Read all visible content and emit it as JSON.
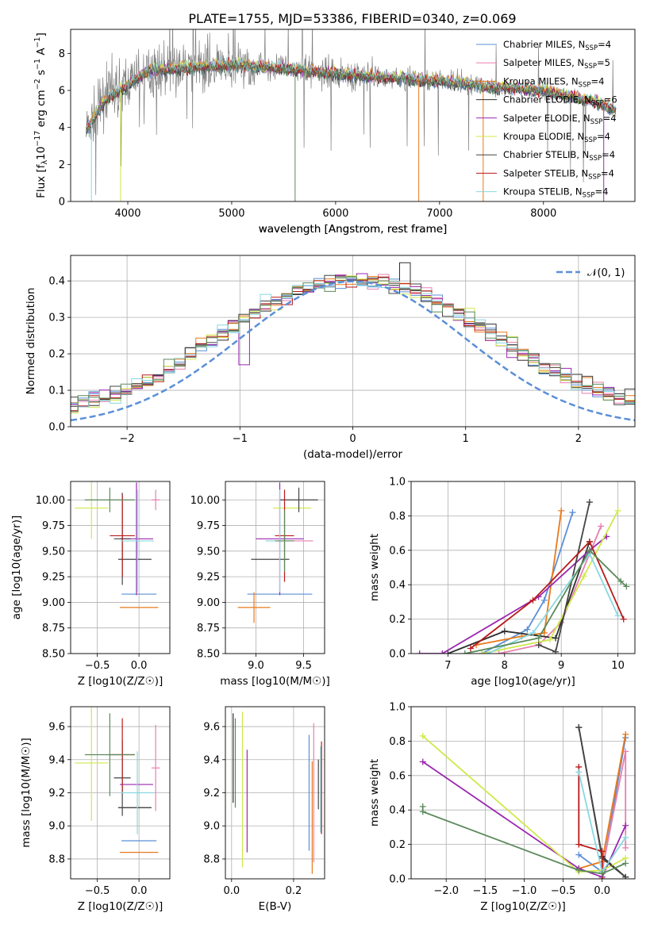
{
  "colors": {
    "palette": [
      "#5b8fd8",
      "#e87faf",
      "#e8791c",
      "#2f2f2f",
      "#9a27b0",
      "#d1e84a",
      "#444444",
      "#b81a1a",
      "#88d8e0",
      "#5b8a5b"
    ],
    "spectrum_data": "#808080",
    "normal_curve": "#5b8fd8",
    "grid": "#b0b0b0"
  },
  "chart_data": [
    {
      "id": "spectrum",
      "type": "line",
      "title": "PLATE=1755, MJD=53386, FIBERID=0340, z=0.069",
      "xlabel": "wavelength [Angstrom, rest frame]",
      "ylabel": "Flux [f_λ 10^-17 erg cm^-2 s^-1 A^-1]",
      "xlim": [
        3450,
        8880
      ],
      "ylim": [
        0,
        9.3
      ],
      "xticks": [
        4000,
        5000,
        6000,
        7000,
        8000
      ],
      "yticks": [
        0,
        2,
        4,
        6,
        8
      ],
      "grid": false,
      "legend_position": "top-right",
      "data_trend": {
        "x": [
          3600,
          3800,
          4000,
          4200,
          4500,
          5000,
          5500,
          6000,
          6500,
          7000,
          7500,
          8000,
          8500,
          8700
        ],
        "y": [
          3.9,
          5.6,
          6.3,
          7.1,
          7.2,
          7.4,
          7.2,
          6.9,
          6.7,
          6.5,
          6.2,
          6.0,
          5.4,
          4.9
        ]
      },
      "legend": [
        {
          "model": "Chabrier MILES",
          "nssp": "4"
        },
        {
          "model": "Salpeter MILES",
          "nssp": "5"
        },
        {
          "model": "Kroupa MILES",
          "nssp": "4"
        },
        {
          "model": "Chabrier ELODIE",
          "nssp": "6"
        },
        {
          "model": "Salpeter ELODIE",
          "nssp": "4"
        },
        {
          "model": "Kroupa ELODIE",
          "nssp": "4"
        },
        {
          "model": "Chabrier STELIB",
          "nssp": "4"
        },
        {
          "model": "Salpeter STELIB",
          "nssp": "4"
        },
        {
          "model": "Kroupa STELIB",
          "nssp": "4"
        }
      ]
    },
    {
      "id": "residuals",
      "type": "histogram",
      "xlabel": "(data-model)/error",
      "ylabel": "Normed distribution",
      "xlim": [
        -2.5,
        2.5
      ],
      "ylim": [
        0,
        0.47
      ],
      "xticks": [
        -2,
        -1,
        0,
        1,
        2
      ],
      "yticks": [
        0.0,
        0.1,
        0.2,
        0.3,
        0.4
      ],
      "grid": true,
      "legend": [
        {
          "label": "𝒩(0, 1)"
        }
      ],
      "legend_position": "top-right",
      "bin_width": 0.1,
      "density_mean": [
        0.026,
        0.028,
        0.032,
        0.038,
        0.044,
        0.052,
        0.06,
        0.068,
        0.075,
        0.082,
        0.09,
        0.1,
        0.112,
        0.126,
        0.142,
        0.16,
        0.18,
        0.2,
        0.222,
        0.24,
        0.258,
        0.276,
        0.294,
        0.312,
        0.33,
        0.346,
        0.36,
        0.372,
        0.382,
        0.39,
        0.396,
        0.4,
        0.402,
        0.402,
        0.4,
        0.396,
        0.39,
        0.382,
        0.372,
        0.36,
        0.346,
        0.33,
        0.312,
        0.294,
        0.276,
        0.258,
        0.24,
        0.222,
        0.204,
        0.186,
        0.168,
        0.152,
        0.138,
        0.124,
        0.112,
        0.1,
        0.09,
        0.08,
        0.072,
        0.064,
        0.056,
        0.05,
        0.044,
        0.039,
        0.034,
        0.03,
        0.027,
        0.025,
        0.024,
        0.022,
        0.02,
        0.019,
        0.018,
        0.017,
        0.016
      ]
    },
    {
      "id": "age-vs-Z",
      "type": "errorbar",
      "xlabel": "Z [log10(Z/Z☉)]",
      "ylabel": "age  [log10(age/yr)]",
      "xlim": [
        -0.82,
        0.37
      ],
      "ylim": [
        8.5,
        10.18
      ],
      "xticks": [
        -0.5,
        0.0
      ],
      "yticks": [
        8.5,
        8.75,
        9.0,
        9.25,
        9.5,
        9.75,
        10.0
      ],
      "grid": true,
      "points": [
        {
          "x": 0.0,
          "xerr": 0.21,
          "y": 9.08,
          "yerr": 0.0
        },
        {
          "x": 0.2,
          "xerr": 0.05,
          "y": 10.0,
          "yerr": 0.1
        },
        {
          "x": 0.0,
          "xerr": 0.23,
          "y": 8.95,
          "yerr": 0.0
        },
        {
          "x": -0.05,
          "xerr": 0.2,
          "y": 9.42,
          "yerr": 0.0
        },
        {
          "x": -0.03,
          "xerr": 0.2,
          "y": 9.62,
          "yerr": 0.55
        },
        {
          "x": -0.57,
          "xerr": 0.2,
          "y": 9.92,
          "yerr": 0.3
        },
        {
          "x": -0.2,
          "xerr": 0.1,
          "y": 9.62,
          "yerr": 0.45
        },
        {
          "x": -0.2,
          "xerr": 0.15,
          "y": 9.65,
          "yerr": 0.4
        },
        {
          "x": -0.02,
          "xerr": 0.2,
          "y": 9.6,
          "yerr": 0.5
        },
        {
          "x": -0.35,
          "xerr": 0.3,
          "y": 10.0,
          "yerr": 0.12
        }
      ]
    },
    {
      "id": "age-vs-mass",
      "type": "errorbar",
      "xlabel": "mass [log10(M/M☉)]",
      "ylabel": "",
      "xlim": [
        8.68,
        9.72
      ],
      "ylim": [
        8.5,
        10.18
      ],
      "xticks": [
        9.0,
        9.5
      ],
      "yticks": [
        8.5,
        8.75,
        9.0,
        9.25,
        9.5,
        9.75,
        10.0
      ],
      "grid": true,
      "points": [
        {
          "x": 9.25,
          "xerr": 0.34,
          "y": 9.08,
          "yerr": 0.0
        },
        {
          "x": 9.35,
          "xerr": 0.25,
          "y": 9.6,
          "yerr": 0.0
        },
        {
          "x": 8.98,
          "xerr": 0.17,
          "y": 8.95,
          "yerr": 0.15
        },
        {
          "x": 9.15,
          "xerr": 0.2,
          "y": 9.42,
          "yerr": 0.0
        },
        {
          "x": 9.25,
          "xerr": 0.25,
          "y": 9.62,
          "yerr": 0.55
        },
        {
          "x": 9.38,
          "xerr": 0.2,
          "y": 9.92,
          "yerr": 0.0
        },
        {
          "x": 9.45,
          "xerr": 0.2,
          "y": 10.0,
          "yerr": 0.12
        },
        {
          "x": 9.3,
          "xerr": 0.1,
          "y": 9.65,
          "yerr": 0.45
        },
        {
          "x": 9.25,
          "xerr": 0.15,
          "y": 9.6,
          "yerr": 0.5
        },
        {
          "x": 9.3,
          "xerr": 0.1,
          "y": 9.6,
          "yerr": 0.3
        }
      ]
    },
    {
      "id": "mass-weight-vs-age",
      "type": "line",
      "xlabel": "age  [log10(age/yr)]",
      "ylabel": "mass weight",
      "xlim": [
        6.35,
        10.3
      ],
      "ylim": [
        0,
        1.0
      ],
      "xticks": [
        7,
        8,
        9,
        10
      ],
      "yticks": [
        0.0,
        0.2,
        0.4,
        0.6,
        0.8,
        1.0
      ],
      "grid": true,
      "series": [
        {
          "x": [
            7.6,
            8.4,
            8.7,
            9.2
          ],
          "y": [
            0.0,
            0.14,
            0.31,
            0.82
          ]
        },
        {
          "x": [
            7.9,
            8.6,
            9.0,
            9.7
          ],
          "y": [
            0.0,
            0.05,
            0.18,
            0.74
          ]
        },
        {
          "x": [
            7.5,
            8.3,
            8.7,
            9.0
          ],
          "y": [
            0.05,
            0.1,
            0.12,
            0.83
          ]
        },
        {
          "x": [
            7.0,
            8.0,
            8.9,
            9.5
          ],
          "y": [
            0.0,
            0.13,
            0.09,
            0.65
          ]
        },
        {
          "x": [
            6.5,
            6.9,
            8.6,
            9.5,
            9.8
          ],
          "y": [
            0.0,
            0.0,
            0.33,
            0.6,
            0.68
          ]
        },
        {
          "x": [
            7.6,
            8.8,
            9.4,
            10.0
          ],
          "y": [
            0.0,
            0.08,
            0.45,
            0.83
          ]
        },
        {
          "x": [
            8.6,
            8.9,
            9.5
          ],
          "y": [
            0.05,
            0.01,
            0.88
          ]
        },
        {
          "x": [
            7.4,
            8.5,
            9.5,
            10.1
          ],
          "y": [
            0.03,
            0.31,
            0.65,
            0.2
          ]
        },
        {
          "x": [
            7.7,
            8.5,
            9.5,
            10.0
          ],
          "y": [
            0.0,
            0.12,
            0.58,
            0.22
          ]
        },
        {
          "x": [
            7.3,
            8.6,
            9.5,
            10.05,
            10.15
          ],
          "y": [
            0.0,
            0.09,
            0.6,
            0.42,
            0.39
          ]
        }
      ]
    },
    {
      "id": "mass-vs-Z",
      "type": "errorbar",
      "xlabel": "Z [log10(Z/Z☉)]",
      "ylabel": "mass [log10(M/M☉)]",
      "xlim": [
        -0.82,
        0.37
      ],
      "ylim": [
        8.68,
        9.72
      ],
      "xticks": [
        -0.5,
        0.0
      ],
      "yticks": [
        8.8,
        9.0,
        9.2,
        9.4,
        9.6
      ],
      "grid": true,
      "points": [
        {
          "x": 0.0,
          "xerr": 0.21,
          "y": 8.91,
          "yerr": 0.0
        },
        {
          "x": 0.2,
          "xerr": 0.05,
          "y": 9.35,
          "yerr": 0.26
        },
        {
          "x": 0.0,
          "xerr": 0.23,
          "y": 8.84,
          "yerr": 0.0
        },
        {
          "x": -0.05,
          "xerr": 0.2,
          "y": 9.11,
          "yerr": 0.0
        },
        {
          "x": -0.03,
          "xerr": 0.2,
          "y": 9.25,
          "yerr": 0.0
        },
        {
          "x": -0.57,
          "xerr": 0.2,
          "y": 9.38,
          "yerr": 0.35
        },
        {
          "x": -0.2,
          "xerr": 0.1,
          "y": 9.29,
          "yerr": 0.23
        },
        {
          "x": -0.2,
          "xerr": 0.15,
          "y": 9.43,
          "yerr": 0.22
        },
        {
          "x": -0.02,
          "xerr": 0.2,
          "y": 9.2,
          "yerr": 0.25
        },
        {
          "x": -0.35,
          "xerr": 0.3,
          "y": 9.43,
          "yerr": 0.25
        }
      ]
    },
    {
      "id": "mass-vs-ebv",
      "type": "errorbar",
      "xlabel": "E(B-V)",
      "ylabel": "",
      "xlim": [
        -0.02,
        0.3
      ],
      "ylim": [
        8.68,
        9.72
      ],
      "xticks": [
        0.0,
        0.2
      ],
      "yticks": [
        8.8,
        9.0,
        9.2,
        9.4,
        9.6
      ],
      "grid": true,
      "points": [
        {
          "x": 0.25,
          "xerr": 0.0,
          "y": 9.2,
          "yerr": 0.35
        },
        {
          "x": 0.265,
          "xerr": 0.0,
          "y": 9.2,
          "yerr": 0.42
        },
        {
          "x": 0.26,
          "xerr": 0.0,
          "y": 9.05,
          "yerr": 0.34
        },
        {
          "x": 0.005,
          "xerr": 0.0,
          "y": 9.41,
          "yerr": 0.27
        },
        {
          "x": 0.05,
          "xerr": 0.0,
          "y": 9.15,
          "yerr": 0.31
        },
        {
          "x": 0.035,
          "xerr": 0.0,
          "y": 9.22,
          "yerr": 0.47
        },
        {
          "x": 0.28,
          "xerr": 0.0,
          "y": 9.25,
          "yerr": 0.15
        },
        {
          "x": 0.29,
          "xerr": 0.0,
          "y": 9.23,
          "yerr": 0.28
        },
        {
          "x": 0.287,
          "xerr": 0.0,
          "y": 9.22,
          "yerr": 0.26
        },
        {
          "x": 0.012,
          "xerr": 0.0,
          "y": 9.38,
          "yerr": 0.27
        }
      ]
    },
    {
      "id": "mass-weight-vs-Z",
      "type": "line",
      "xlabel": "Z [log10(Z/Z☉)]",
      "ylabel": "mass weight",
      "xlim": [
        -2.45,
        0.42
      ],
      "ylim": [
        0,
        1.0
      ],
      "xticks": [
        -2.0,
        -1.5,
        -1.0,
        -0.5,
        0.0
      ],
      "yticks": [
        0.0,
        0.2,
        0.4,
        0.6,
        0.8,
        1.0
      ],
      "grid": true,
      "series": [
        {
          "x": [
            -0.3,
            0.0,
            0.3
          ],
          "y": [
            0.14,
            0.04,
            0.82
          ]
        },
        {
          "x": [
            0.0,
            0.3,
            0.3
          ],
          "y": [
            0.05,
            0.74,
            0.18
          ]
        },
        {
          "x": [
            -0.3,
            0.0,
            0.3
          ],
          "y": [
            0.06,
            0.1,
            0.84
          ]
        },
        {
          "x": [
            -0.3,
            0.0,
            0.3
          ],
          "y": [
            0.88,
            0.13,
            0.01
          ]
        },
        {
          "x": [
            -2.3,
            -0.3,
            0.0,
            0.3
          ],
          "y": [
            0.68,
            0.06,
            0.01,
            0.31
          ]
        },
        {
          "x": [
            -2.3,
            -0.3,
            0.0,
            0.3
          ],
          "y": [
            0.83,
            0.04,
            0.05,
            0.12
          ]
        },
        {
          "x": [
            -0.3,
            0.0,
            0.3
          ],
          "y": [
            0.88,
            0.12,
            0.01
          ]
        },
        {
          "x": [
            -0.3,
            -0.3,
            0.0,
            0.0
          ],
          "y": [
            0.65,
            0.2,
            0.16,
            0.0
          ]
        },
        {
          "x": [
            -0.3,
            0.0,
            0.3
          ],
          "y": [
            0.62,
            0.04,
            0.24
          ]
        },
        {
          "x": [
            -2.3,
            -2.3,
            -0.3,
            0.0,
            0.3
          ],
          "y": [
            0.42,
            0.39,
            0.05,
            0.03,
            0.09
          ]
        }
      ]
    }
  ]
}
